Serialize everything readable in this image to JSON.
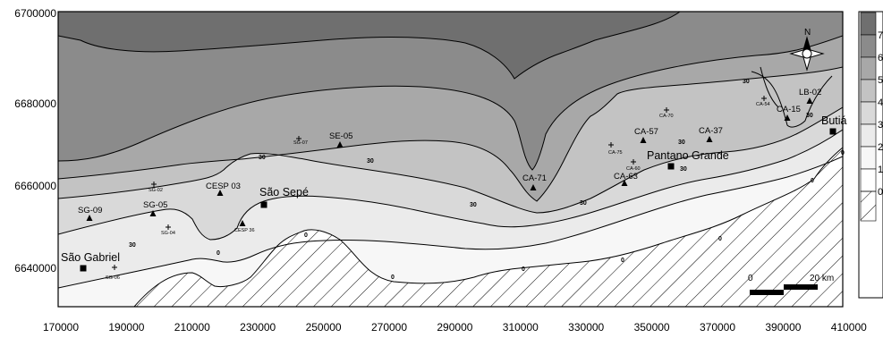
{
  "map": {
    "y_axis_labels": [
      "6700000",
      "6680000",
      "6660000",
      "6640000"
    ],
    "x_axis_labels": [
      "170000",
      "190000",
      "210000",
      "230000",
      "250000",
      "270000",
      "290000",
      "310000",
      "330000",
      "350000",
      "370000",
      "390000",
      "410000"
    ],
    "cities": [
      {
        "name": "São Gabriel"
      },
      {
        "name": "São Sepé"
      },
      {
        "name": "Pantano Grande"
      },
      {
        "name": "Butiá"
      }
    ],
    "stations": [
      {
        "id": "SG-09",
        "marker": "triangle",
        "size": "normal"
      },
      {
        "id": "SG-05",
        "marker": "triangle",
        "size": "normal"
      },
      {
        "id": "SG-02",
        "marker": "cross",
        "size": "small"
      },
      {
        "id": "SG-04",
        "marker": "cross",
        "size": "small"
      },
      {
        "id": "SG-06",
        "marker": "cross",
        "size": "small"
      },
      {
        "id": "CESP 03",
        "marker": "triangle",
        "size": "normal"
      },
      {
        "id": "CESP 36",
        "marker": "triangle",
        "size": "small"
      },
      {
        "id": "SG-07",
        "marker": "cross",
        "size": "small"
      },
      {
        "id": "SE-05",
        "marker": "triangle",
        "size": "normal"
      },
      {
        "id": "CA-71",
        "marker": "triangle",
        "size": "normal"
      },
      {
        "id": "CA-75",
        "marker": "cross",
        "size": "small"
      },
      {
        "id": "CA-57",
        "marker": "triangle",
        "size": "normal"
      },
      {
        "id": "CA-60",
        "marker": "cross",
        "size": "small"
      },
      {
        "id": "CA-63",
        "marker": "triangle",
        "size": "normal"
      },
      {
        "id": "CA-70",
        "marker": "cross",
        "size": "small"
      },
      {
        "id": "CA-37",
        "marker": "triangle",
        "size": "normal"
      },
      {
        "id": "CA-54",
        "marker": "cross",
        "size": "small"
      },
      {
        "id": "CA-15",
        "marker": "triangle",
        "size": "normal"
      },
      {
        "id": "LB-02",
        "marker": "triangle",
        "size": "normal"
      }
    ],
    "contour_labels": [
      "30",
      "30",
      "30",
      "30",
      "30",
      "30",
      "30",
      "30",
      "30",
      "0",
      "0",
      "0",
      "0",
      "0",
      "0",
      "0",
      "0"
    ],
    "scale_bar": {
      "start_label": "0",
      "end_label": "20 km"
    },
    "compass": {
      "north_label": "N"
    },
    "legend": {
      "labels": [
        "7",
        "6",
        "5",
        "4",
        "3",
        "2",
        "1",
        "0"
      ],
      "colors": [
        "#6f6f6f",
        "#8b8b8b",
        "#a8a8a8",
        "#c3c3c3",
        "#d9d9d9",
        "#ebebeb",
        "#f7f7f7",
        "#ffffff"
      ]
    },
    "palette": {
      "level_7": "#6f6f6f",
      "level_6": "#8b8b8b",
      "level_5": "#a8a8a8",
      "level_4": "#c3c3c3",
      "level_3": "#d9d9d9",
      "level_2": "#ebebeb",
      "level_1": "#f7f7f7",
      "level_0": "#ffffff"
    }
  }
}
